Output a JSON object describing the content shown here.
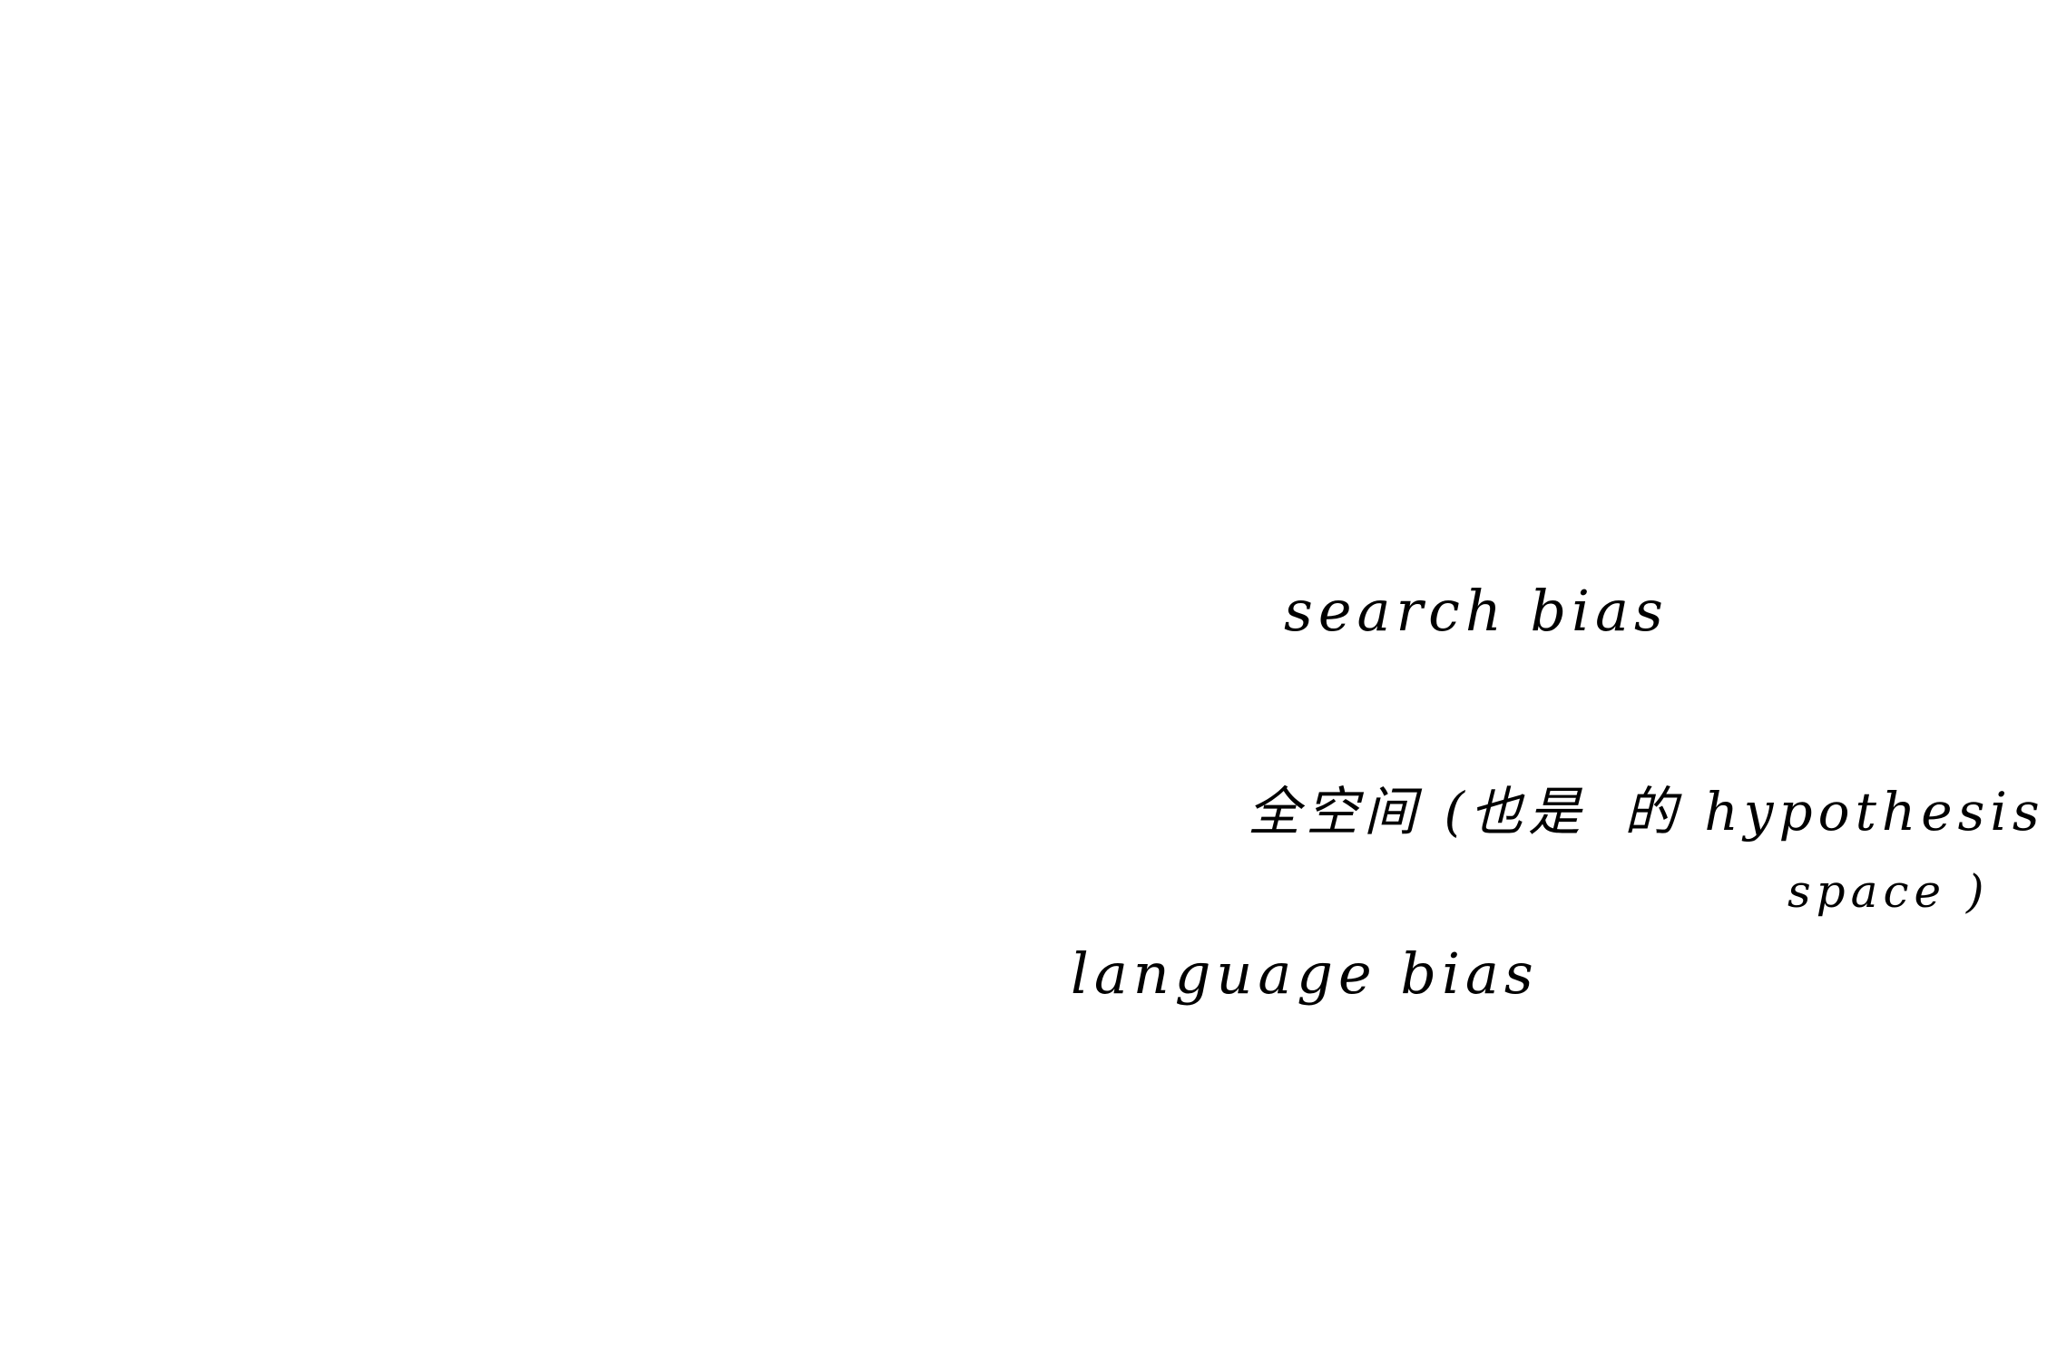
{
  "colors": {
    "background": "#ffffff",
    "ink": "#000000"
  },
  "diagram": {
    "labels": {
      "search_bias": "search bias",
      "full_space": "全空间 (也是",
      "hypothesis_prefix": "的 hypothesis",
      "hypothesis_suffix": "space )",
      "language_bias": "language bias"
    }
  }
}
